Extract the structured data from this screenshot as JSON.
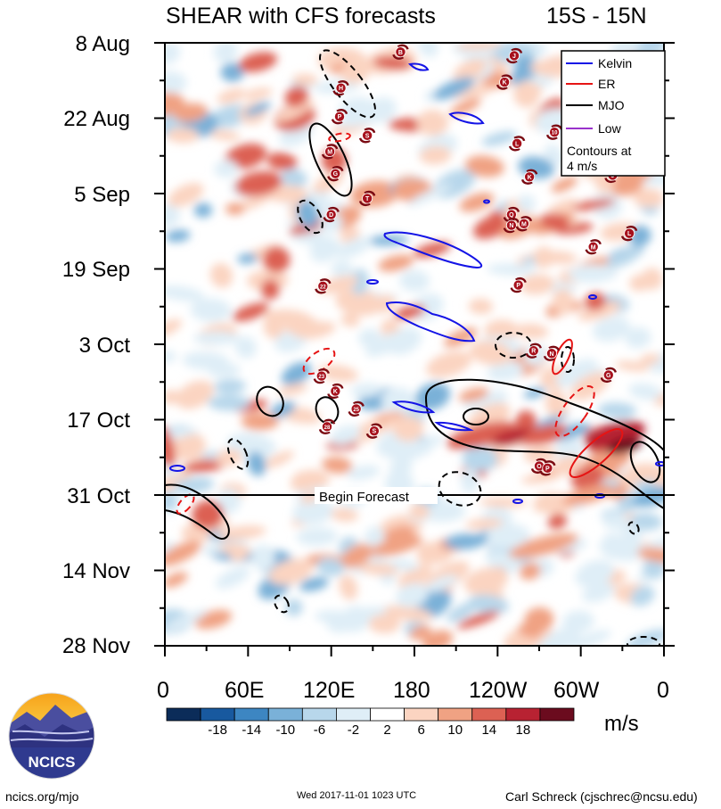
{
  "chart_data": {
    "type": "heatmap",
    "title": "SHEAR with CFS forecasts",
    "region": "15S - 15N",
    "y_ticks": [
      {
        "label": "8 Aug",
        "day": 0
      },
      {
        "label": "22 Aug",
        "day": 14
      },
      {
        "label": "5 Sep",
        "day": 28
      },
      {
        "label": "19 Sep",
        "day": 42
      },
      {
        "label": "3 Oct",
        "day": 56
      },
      {
        "label": "17 Oct",
        "day": 70
      },
      {
        "label": "31 Oct",
        "day": 84
      },
      {
        "label": "14 Nov",
        "day": 98
      },
      {
        "label": "28 Nov",
        "day": 112
      }
    ],
    "x_ticks": [
      {
        "label": "0",
        "lon": 0
      },
      {
        "label": "60E",
        "lon": 60
      },
      {
        "label": "120E",
        "lon": 120
      },
      {
        "label": "180",
        "lon": 180
      },
      {
        "label": "120W",
        "lon": 240
      },
      {
        "label": "60W",
        "lon": 300
      },
      {
        "label": "0",
        "lon": 360
      }
    ],
    "lon_range": [
      0,
      360
    ],
    "day_range": [
      0,
      112
    ],
    "forecast_start_day": 84,
    "forecast_label": "Begin Forecast",
    "colorbar": {
      "levels": [
        -18,
        -14,
        -10,
        -6,
        -2,
        2,
        6,
        10,
        14,
        18
      ],
      "colors": [
        "#0b2c59",
        "#18599f",
        "#3d86c2",
        "#7ab1d8",
        "#b8d7eb",
        "#dfeef7",
        "#ffffff",
        "#fbd4c1",
        "#f0a283",
        "#dc6153",
        "#b82232",
        "#6b0b1e"
      ],
      "units": "m/s"
    },
    "legend": {
      "items": [
        {
          "label": "Kelvin",
          "color": "#1414e6"
        },
        {
          "label": "ER",
          "color": "#e61414"
        },
        {
          "label": "MJO",
          "color": "#000000"
        },
        {
          "label": "Low",
          "color": "#9932cc"
        }
      ],
      "note_line1": "Contours at",
      "note_line2": "4 m/s"
    },
    "storms": [
      {
        "label": "B",
        "lon": 170,
        "day": 1.7
      },
      {
        "label": "J",
        "lon": 252,
        "day": 2.4
      },
      {
        "label": "K",
        "lon": 245,
        "day": 7.3
      },
      {
        "label": "H",
        "lon": 127,
        "day": 8.4
      },
      {
        "label": "P",
        "lon": 126,
        "day": 13.7
      },
      {
        "label": "10",
        "lon": 281,
        "day": 16.6
      },
      {
        "label": "S",
        "lon": 146,
        "day": 17.2
      },
      {
        "label": "L",
        "lon": 254,
        "day": 18.7
      },
      {
        "label": "M",
        "lon": 119,
        "day": 20.2
      },
      {
        "label": "G",
        "lon": 123,
        "day": 24.3
      },
      {
        "label": "K",
        "lon": 263,
        "day": 24.9
      },
      {
        "label": "J",
        "lon": 323,
        "day": 24.6
      },
      {
        "label": "T",
        "lon": 146,
        "day": 28.9
      },
      {
        "label": "D",
        "lon": 120,
        "day": 31.9
      },
      {
        "label": "Q",
        "lon": 250,
        "day": 31.9
      },
      {
        "label": "N",
        "lon": 250,
        "day": 33.9
      },
      {
        "label": "M",
        "lon": 259,
        "day": 33.6
      },
      {
        "label": "L",
        "lon": 335,
        "day": 35.4
      },
      {
        "label": "M",
        "lon": 309,
        "day": 37.9
      },
      {
        "label": "22",
        "lon": 114,
        "day": 45.2
      },
      {
        "label": "P",
        "lon": 255,
        "day": 45.0
      },
      {
        "label": "R",
        "lon": 266,
        "day": 57.2
      },
      {
        "label": "N",
        "lon": 279,
        "day": 57.7
      },
      {
        "label": "23",
        "lon": 113,
        "day": 61.9
      },
      {
        "label": "G",
        "lon": 320,
        "day": 61.7
      },
      {
        "label": "K",
        "lon": 123,
        "day": 64.7
      },
      {
        "label": "25",
        "lon": 138,
        "day": 68.0
      },
      {
        "label": "28",
        "lon": 117,
        "day": 71.3
      },
      {
        "label": "S",
        "lon": 151,
        "day": 72.1
      },
      {
        "label": "O",
        "lon": 270,
        "day": 78.6
      },
      {
        "label": "P",
        "lon": 276,
        "day": 79.0
      }
    ]
  },
  "branding": {
    "logo_text": "NCICS",
    "website": "ncics.org/mjo",
    "timestamp": "Wed 2017-11-01 1023 UTC",
    "author": "Carl Schreck (cjschrec@ncsu.edu)"
  }
}
